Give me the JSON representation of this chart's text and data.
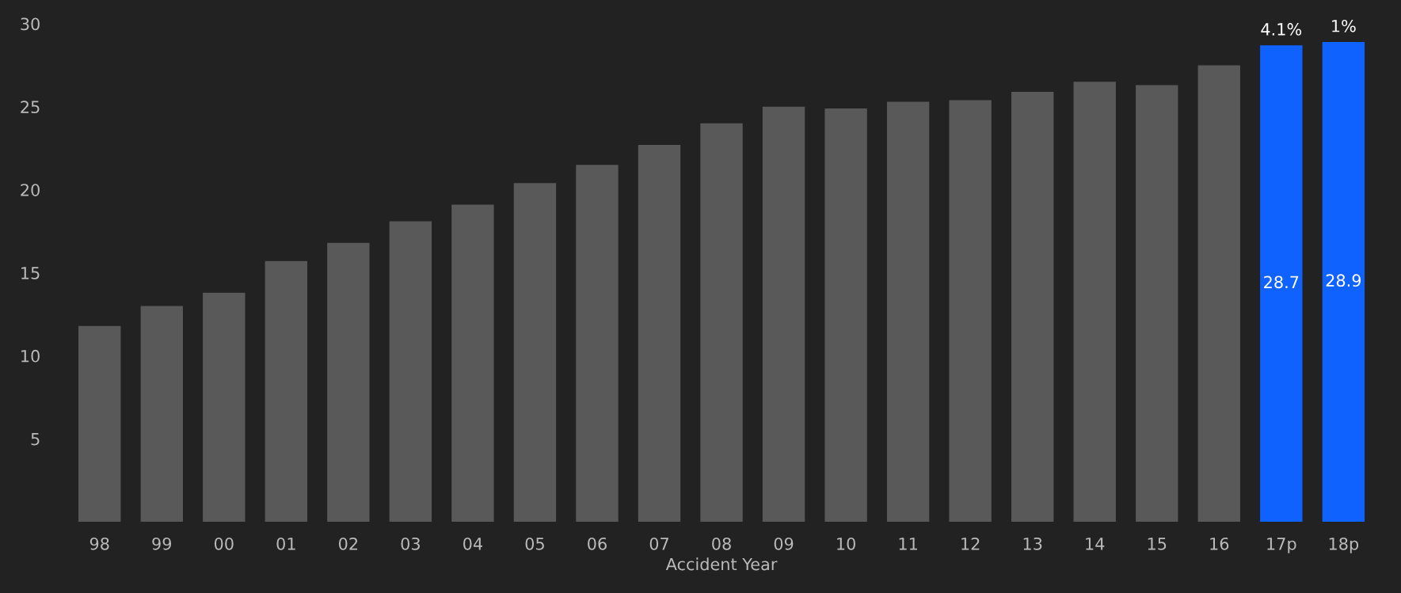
{
  "chart_data": {
    "type": "bar",
    "xlabel": "Accident Year",
    "categories": [
      "98",
      "99",
      "00",
      "01",
      "02",
      "03",
      "04",
      "05",
      "06",
      "07",
      "08",
      "09",
      "10",
      "11",
      "12",
      "13",
      "14",
      "15",
      "16",
      "17p",
      "18p"
    ],
    "values": [
      11.8,
      13.0,
      13.8,
      15.7,
      16.8,
      18.1,
      19.1,
      20.4,
      21.5,
      22.7,
      24.0,
      25.0,
      24.9,
      25.3,
      25.4,
      25.9,
      26.5,
      26.3,
      27.5,
      28.7,
      28.9
    ],
    "colors": [
      "#595959",
      "#595959",
      "#595959",
      "#595959",
      "#595959",
      "#595959",
      "#595959",
      "#595959",
      "#595959",
      "#595959",
      "#595959",
      "#595959",
      "#595959",
      "#595959",
      "#595959",
      "#595959",
      "#595959",
      "#595959",
      "#595959",
      "#0f62fe",
      "#0f62fe"
    ],
    "value_labels": [
      null,
      null,
      null,
      null,
      null,
      null,
      null,
      null,
      null,
      null,
      null,
      null,
      null,
      null,
      null,
      null,
      null,
      null,
      null,
      "28.7",
      "28.9"
    ],
    "annotations": [
      {
        "text": "4.1%",
        "x": "17p",
        "y": 28.7
      },
      {
        "text": "1%",
        "x": "18p",
        "y": 28.9
      }
    ],
    "ylim": [
      0,
      30
    ],
    "yticks": [
      5,
      10,
      15,
      20,
      25,
      30
    ],
    "grid": false
  }
}
